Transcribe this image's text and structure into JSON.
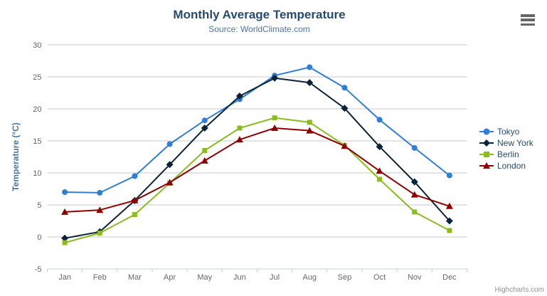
{
  "header": {
    "title": "Monthly Average Temperature",
    "subtitle": "Source: WorldClimate.com"
  },
  "export_menu": {
    "icon": "hamburger-icon"
  },
  "credits": {
    "label": "Highcharts.com"
  },
  "colors": {
    "title": "#274b6d",
    "subtitle": "#4d759e",
    "axis_label": "#666666",
    "axis_title": "#4d759e",
    "grid": "#c9c9c9",
    "axis_line": "#c0d0e0",
    "legend_text": "#274b6d"
  },
  "chart_data": {
    "type": "line",
    "title": "Monthly Average Temperature",
    "subtitle": "Source: WorldClimate.com",
    "xlabel": "",
    "ylabel": "Temperature (°C)",
    "ylim": [
      -5,
      30
    ],
    "yticks": [
      -5,
      0,
      5,
      10,
      15,
      20,
      25,
      30
    ],
    "grid": true,
    "legend_position": "right",
    "categories": [
      "Jan",
      "Feb",
      "Mar",
      "Apr",
      "May",
      "Jun",
      "Jul",
      "Aug",
      "Sep",
      "Oct",
      "Nov",
      "Dec"
    ],
    "series": [
      {
        "name": "Tokyo",
        "color": "#2f7ed8",
        "marker": "circle",
        "values": [
          7.0,
          6.9,
          9.5,
          14.5,
          18.2,
          21.5,
          25.2,
          26.5,
          23.3,
          18.3,
          13.9,
          9.6
        ]
      },
      {
        "name": "New York",
        "color": "#0d233a",
        "marker": "diamond",
        "values": [
          -0.2,
          0.8,
          5.7,
          11.3,
          17.0,
          22.0,
          24.8,
          24.1,
          20.1,
          14.1,
          8.6,
          2.5
        ]
      },
      {
        "name": "Berlin",
        "color": "#8bbc21",
        "marker": "square",
        "values": [
          -0.9,
          0.6,
          3.5,
          8.4,
          13.5,
          17.0,
          18.6,
          17.9,
          14.3,
          9.0,
          3.9,
          1.0
        ]
      },
      {
        "name": "London",
        "color": "#910000",
        "marker": "triangle",
        "values": [
          3.9,
          4.2,
          5.7,
          8.5,
          11.9,
          15.2,
          17.0,
          16.6,
          14.2,
          10.3,
          6.6,
          4.8
        ]
      }
    ]
  }
}
